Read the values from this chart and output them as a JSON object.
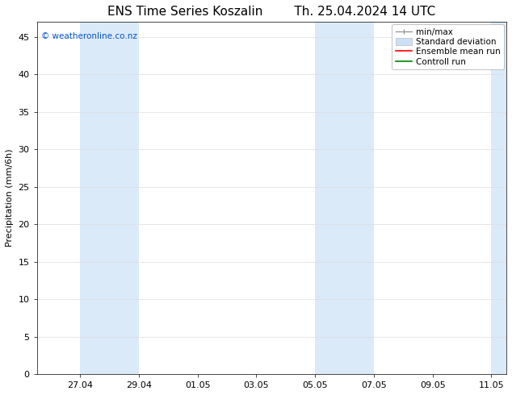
{
  "title_left": "ENS Time Series Koszalin",
  "title_right": "Th. 25.04.2024 14 UTC",
  "ylabel": "Precipitation (mm/6h)",
  "watermark": "© weatheronline.co.nz",
  "watermark_color": "#0055cc",
  "ylim": [
    0,
    47
  ],
  "yticks": [
    0,
    5,
    10,
    15,
    20,
    25,
    30,
    35,
    40,
    45
  ],
  "xtick_labels": [
    "27.04",
    "29.04",
    "01.05",
    "03.05",
    "05.05",
    "07.05",
    "09.05",
    "11.05"
  ],
  "background_color": "#ffffff",
  "plot_bg_color": "#ffffff",
  "legend_entries": [
    {
      "label": "min/max",
      "color": "#aaaaaa",
      "type": "errorbar"
    },
    {
      "label": "Standard deviation",
      "color": "#cce0f5",
      "type": "box"
    },
    {
      "label": "Ensemble mean run",
      "color": "#ff0000",
      "type": "line"
    },
    {
      "label": "Controll run",
      "color": "#008000",
      "type": "line"
    }
  ],
  "title_fontsize": 11,
  "axis_label_fontsize": 8,
  "tick_fontsize": 8,
  "legend_fontsize": 7.5,
  "grid_color": "#dddddd",
  "shade_color": "#dbeaf8",
  "shade_alpha": 1.0
}
